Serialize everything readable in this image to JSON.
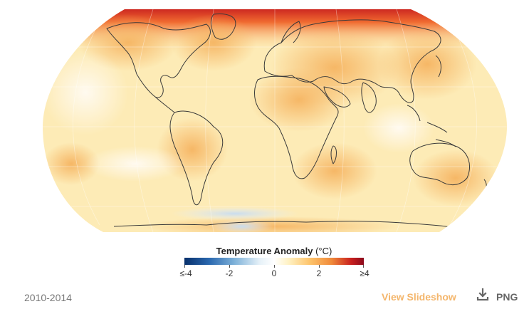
{
  "legend": {
    "title": "Temperature Anomaly",
    "unit": "(°C)",
    "ticks": [
      "≤-4",
      "-2",
      "0",
      "2",
      "≥4"
    ],
    "range": [
      -4,
      4
    ],
    "colors": [
      "#08306b",
      "#2b69b0",
      "#e6f1f8",
      "#ffffff",
      "#fdc36a",
      "#f08a3a",
      "#c8201e",
      "#8c0a1c"
    ]
  },
  "footer": {
    "period": "2010-2014",
    "slideshow_label": "View Slideshow",
    "download_label": "PNG",
    "slideshow_color": "#f4b66c"
  },
  "map": {
    "projection": "robinson",
    "base_color": "#fdebb6",
    "coastline_color": "#3a3a3a",
    "hotspot_color": "#d42a1a"
  }
}
